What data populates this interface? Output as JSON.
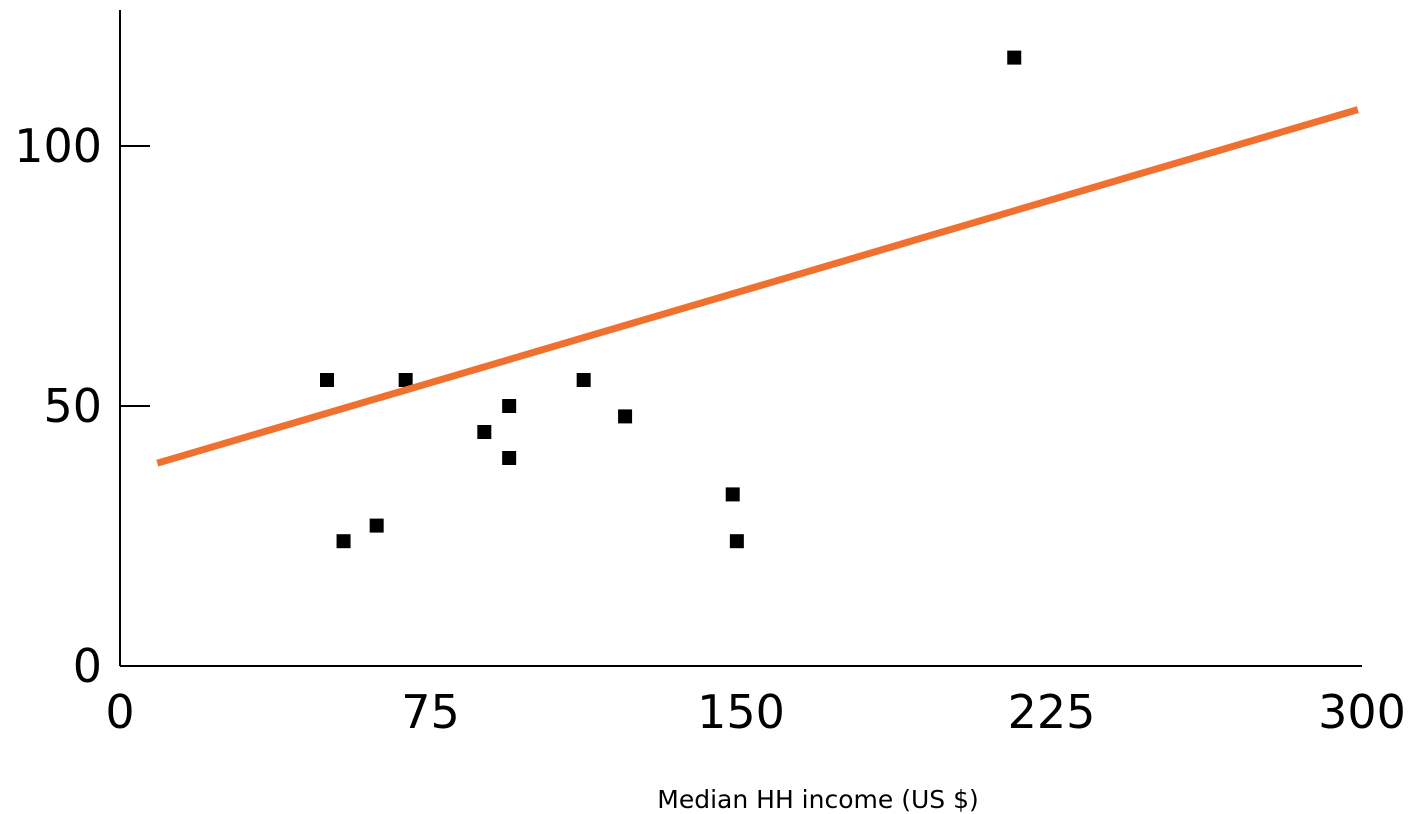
{
  "chart_data": {
    "type": "scatter",
    "title": "",
    "xlabel": "Median HH income (US $)",
    "ylabel": "",
    "xlim": [
      0,
      300
    ],
    "ylim": [
      0,
      100
    ],
    "xticks": [
      0,
      75,
      150,
      225,
      300
    ],
    "yticks": [
      0,
      50,
      100
    ],
    "grid": false,
    "legend": "none",
    "series": [
      {
        "type": "scatter",
        "marker": "square",
        "color": "#000000",
        "points": [
          {
            "x": 50,
            "y": 55
          },
          {
            "x": 54,
            "y": 24
          },
          {
            "x": 62,
            "y": 27
          },
          {
            "x": 69,
            "y": 55
          },
          {
            "x": 88,
            "y": 45
          },
          {
            "x": 94,
            "y": 50
          },
          {
            "x": 94,
            "y": 40
          },
          {
            "x": 112,
            "y": 55
          },
          {
            "x": 122,
            "y": 48
          },
          {
            "x": 148,
            "y": 33
          },
          {
            "x": 149,
            "y": 24
          },
          {
            "x": 216,
            "y": 117
          }
        ]
      },
      {
        "type": "line",
        "color": "#F07030",
        "points": [
          {
            "x": 9,
            "y": 39
          },
          {
            "x": 299,
            "y": 107
          }
        ]
      }
    ]
  }
}
